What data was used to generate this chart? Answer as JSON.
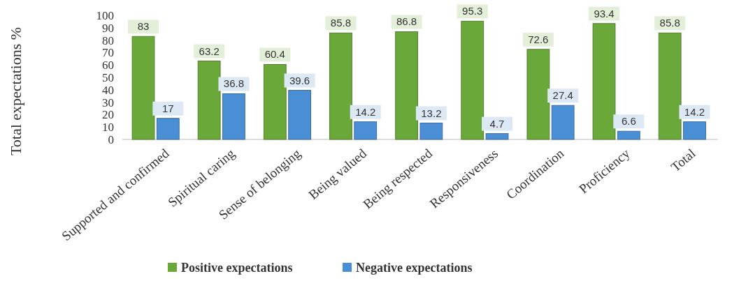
{
  "chart_data": {
    "type": "bar",
    "ylabel": "Total expectations %",
    "categories": [
      "Supported and confirmed",
      "Spiritual caring",
      "Sense of belonging",
      "Being valued",
      "Being respected",
      "Responsiveness",
      "Coordination",
      "Proficiency",
      "Total"
    ],
    "series": [
      {
        "name": "Positive expectations",
        "color": "#6aa83a",
        "values": [
          83,
          63.2,
          60.4,
          85.8,
          86.8,
          95.3,
          72.6,
          93.4,
          85.8
        ]
      },
      {
        "name": "Negative expectations",
        "color": "#4a8fd6",
        "values": [
          17,
          36.8,
          39.6,
          14.2,
          13.2,
          4.7,
          27.4,
          6.6,
          14.2
        ]
      }
    ],
    "ylim": [
      0,
      100
    ],
    "yticks": [
      0,
      10,
      20,
      30,
      40,
      50,
      60,
      70,
      80,
      90,
      100
    ],
    "data_labels": true,
    "legend": "bottom",
    "grid": false
  }
}
